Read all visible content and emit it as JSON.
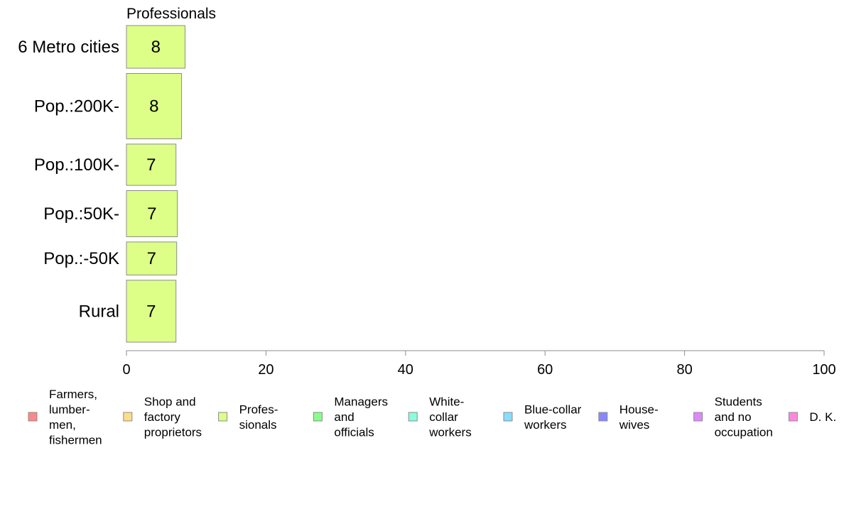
{
  "chart_data": {
    "type": "bar",
    "orientation": "horizontal",
    "stacked": true,
    "title": "Professionals",
    "categories": [
      "6 Metro cities",
      "Pop.:200K-",
      "Pop.:100K-",
      "Pop.:50K-",
      "Pop.:-50K",
      "Rural"
    ],
    "series": [
      {
        "name": "Professionals",
        "color": "#ddff88",
        "values": [
          8.4,
          7.9,
          7.1,
          7.3,
          7.2,
          7.1
        ],
        "labels": [
          "8",
          "8",
          "7",
          "7",
          "7",
          "7"
        ]
      }
    ],
    "band_weights": [
      0.62,
      0.95,
      0.6,
      0.67,
      0.48,
      0.9
    ],
    "xlim": [
      0,
      100
    ],
    "xticks": [
      "0",
      "20",
      "40",
      "60",
      "80",
      "100"
    ],
    "grid": false,
    "legend_position": "bottom",
    "legend": [
      {
        "label": "Farmers,\nlumber-\nmen,\nfishermen",
        "color": "#ff8888"
      },
      {
        "label": "Shop and\nfactory\nproprietors",
        "color": "#ffdd88"
      },
      {
        "label": "Profes-\nsionals",
        "color": "#ddff88"
      },
      {
        "label": "Managers\nand\nofficials",
        "color": "#88ff88"
      },
      {
        "label": "White-\ncollar\nworkers",
        "color": "#88ffdd"
      },
      {
        "label": "Blue-collar\nworkers",
        "color": "#88ddff"
      },
      {
        "label": "House-\nwives",
        "color": "#8888ff"
      },
      {
        "label": "Students\nand no\noccupation",
        "color": "#dd88ff"
      },
      {
        "label": "D. K.",
        "color": "#ff88dd"
      }
    ]
  }
}
